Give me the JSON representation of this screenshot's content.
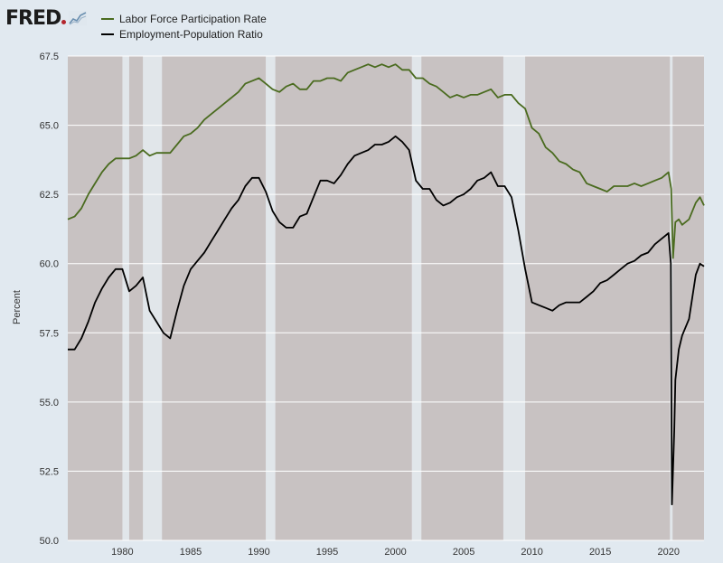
{
  "header": {
    "logo_text": "FRED"
  },
  "chart_data": {
    "type": "line",
    "ylabel": "Percent",
    "xlabel": "",
    "ylim": [
      50.0,
      67.5
    ],
    "xlim": [
      1976.0,
      2022.6
    ],
    "y_ticks": [
      "50.0",
      "52.5",
      "55.0",
      "57.5",
      "60.0",
      "62.5",
      "65.0",
      "67.5"
    ],
    "y_tick_values": [
      50.0,
      52.5,
      55.0,
      57.5,
      60.0,
      62.5,
      65.0,
      67.5
    ],
    "x_ticks": [
      "1980",
      "1985",
      "1990",
      "1995",
      "2000",
      "2005",
      "2010",
      "2015",
      "2020"
    ],
    "x_tick_values": [
      1980,
      1985,
      1990,
      1995,
      2000,
      2005,
      2010,
      2015,
      2020
    ],
    "legend_position": "top-left",
    "grid": true,
    "colors": {
      "plot_background": "#c8c2c2",
      "recession_shade": "#e1e6ea",
      "grid": "#ffffff",
      "axis_text": "#333333"
    },
    "recessions": [
      {
        "start": 1980.0,
        "end": 1980.5
      },
      {
        "start": 1981.5,
        "end": 1982.9
      },
      {
        "start": 1990.5,
        "end": 1991.2
      },
      {
        "start": 2001.2,
        "end": 2001.9
      },
      {
        "start": 2007.9,
        "end": 2009.5
      },
      {
        "start": 2020.1,
        "end": 2020.3
      }
    ],
    "series": [
      {
        "name": "Labor Force Participation Rate",
        "color": "#4a6b1f",
        "points": [
          [
            1976.0,
            61.6
          ],
          [
            1976.5,
            61.7
          ],
          [
            1977.0,
            62.0
          ],
          [
            1977.5,
            62.5
          ],
          [
            1978.0,
            62.9
          ],
          [
            1978.5,
            63.3
          ],
          [
            1979.0,
            63.6
          ],
          [
            1979.5,
            63.8
          ],
          [
            1980.0,
            63.8
          ],
          [
            1980.5,
            63.8
          ],
          [
            1981.0,
            63.9
          ],
          [
            1981.5,
            64.1
          ],
          [
            1982.0,
            63.9
          ],
          [
            1982.5,
            64.0
          ],
          [
            1983.0,
            64.0
          ],
          [
            1983.5,
            64.0
          ],
          [
            1984.0,
            64.3
          ],
          [
            1984.5,
            64.6
          ],
          [
            1985.0,
            64.7
          ],
          [
            1985.5,
            64.9
          ],
          [
            1986.0,
            65.2
          ],
          [
            1986.5,
            65.4
          ],
          [
            1987.0,
            65.6
          ],
          [
            1987.5,
            65.8
          ],
          [
            1988.0,
            66.0
          ],
          [
            1988.5,
            66.2
          ],
          [
            1989.0,
            66.5
          ],
          [
            1989.5,
            66.6
          ],
          [
            1990.0,
            66.7
          ],
          [
            1990.5,
            66.5
          ],
          [
            1991.0,
            66.3
          ],
          [
            1991.5,
            66.2
          ],
          [
            1992.0,
            66.4
          ],
          [
            1992.5,
            66.5
          ],
          [
            1993.0,
            66.3
          ],
          [
            1993.5,
            66.3
          ],
          [
            1994.0,
            66.6
          ],
          [
            1994.5,
            66.6
          ],
          [
            1995.0,
            66.7
          ],
          [
            1995.5,
            66.7
          ],
          [
            1996.0,
            66.6
          ],
          [
            1996.5,
            66.9
          ],
          [
            1997.0,
            67.0
          ],
          [
            1997.5,
            67.1
          ],
          [
            1998.0,
            67.2
          ],
          [
            1998.5,
            67.1
          ],
          [
            1999.0,
            67.2
          ],
          [
            1999.5,
            67.1
          ],
          [
            2000.0,
            67.2
          ],
          [
            2000.5,
            67.0
          ],
          [
            2001.0,
            67.0
          ],
          [
            2001.5,
            66.7
          ],
          [
            2002.0,
            66.7
          ],
          [
            2002.5,
            66.5
          ],
          [
            2003.0,
            66.4
          ],
          [
            2003.5,
            66.2
          ],
          [
            2004.0,
            66.0
          ],
          [
            2004.5,
            66.1
          ],
          [
            2005.0,
            66.0
          ],
          [
            2005.5,
            66.1
          ],
          [
            2006.0,
            66.1
          ],
          [
            2006.5,
            66.2
          ],
          [
            2007.0,
            66.3
          ],
          [
            2007.5,
            66.0
          ],
          [
            2008.0,
            66.1
          ],
          [
            2008.5,
            66.1
          ],
          [
            2009.0,
            65.8
          ],
          [
            2009.5,
            65.6
          ],
          [
            2010.0,
            64.9
          ],
          [
            2010.5,
            64.7
          ],
          [
            2011.0,
            64.2
          ],
          [
            2011.5,
            64.0
          ],
          [
            2012.0,
            63.7
          ],
          [
            2012.5,
            63.6
          ],
          [
            2013.0,
            63.4
          ],
          [
            2013.5,
            63.3
          ],
          [
            2014.0,
            62.9
          ],
          [
            2014.5,
            62.8
          ],
          [
            2015.0,
            62.7
          ],
          [
            2015.5,
            62.6
          ],
          [
            2016.0,
            62.8
          ],
          [
            2016.5,
            62.8
          ],
          [
            2017.0,
            62.8
          ],
          [
            2017.5,
            62.9
          ],
          [
            2018.0,
            62.8
          ],
          [
            2018.5,
            62.9
          ],
          [
            2019.0,
            63.0
          ],
          [
            2019.5,
            63.1
          ],
          [
            2020.0,
            63.3
          ],
          [
            2020.2,
            62.7
          ],
          [
            2020.33,
            60.2
          ],
          [
            2020.5,
            61.5
          ],
          [
            2020.75,
            61.6
          ],
          [
            2021.0,
            61.4
          ],
          [
            2021.5,
            61.6
          ],
          [
            2022.0,
            62.2
          ],
          [
            2022.3,
            62.4
          ],
          [
            2022.6,
            62.1
          ]
        ]
      },
      {
        "name": "Employment-Population Ratio",
        "color": "#000000",
        "points": [
          [
            1976.0,
            56.9
          ],
          [
            1976.5,
            56.9
          ],
          [
            1977.0,
            57.3
          ],
          [
            1977.5,
            57.9
          ],
          [
            1978.0,
            58.6
          ],
          [
            1978.5,
            59.1
          ],
          [
            1979.0,
            59.5
          ],
          [
            1979.5,
            59.8
          ],
          [
            1980.0,
            59.8
          ],
          [
            1980.5,
            59.0
          ],
          [
            1981.0,
            59.2
          ],
          [
            1981.5,
            59.5
          ],
          [
            1982.0,
            58.3
          ],
          [
            1982.5,
            57.9
          ],
          [
            1983.0,
            57.5
          ],
          [
            1983.5,
            57.3
          ],
          [
            1984.0,
            58.3
          ],
          [
            1984.5,
            59.2
          ],
          [
            1985.0,
            59.8
          ],
          [
            1985.5,
            60.1
          ],
          [
            1986.0,
            60.4
          ],
          [
            1986.5,
            60.8
          ],
          [
            1987.0,
            61.2
          ],
          [
            1987.5,
            61.6
          ],
          [
            1988.0,
            62.0
          ],
          [
            1988.5,
            62.3
          ],
          [
            1989.0,
            62.8
          ],
          [
            1989.5,
            63.1
          ],
          [
            1990.0,
            63.1
          ],
          [
            1990.5,
            62.6
          ],
          [
            1991.0,
            61.9
          ],
          [
            1991.5,
            61.5
          ],
          [
            1992.0,
            61.3
          ],
          [
            1992.5,
            61.3
          ],
          [
            1993.0,
            61.7
          ],
          [
            1993.5,
            61.8
          ],
          [
            1994.0,
            62.4
          ],
          [
            1994.5,
            63.0
          ],
          [
            1995.0,
            63.0
          ],
          [
            1995.5,
            62.9
          ],
          [
            1996.0,
            63.2
          ],
          [
            1996.5,
            63.6
          ],
          [
            1997.0,
            63.9
          ],
          [
            1997.5,
            64.0
          ],
          [
            1998.0,
            64.1
          ],
          [
            1998.5,
            64.3
          ],
          [
            1999.0,
            64.3
          ],
          [
            1999.5,
            64.4
          ],
          [
            2000.0,
            64.6
          ],
          [
            2000.5,
            64.4
          ],
          [
            2001.0,
            64.1
          ],
          [
            2001.5,
            63.0
          ],
          [
            2002.0,
            62.7
          ],
          [
            2002.5,
            62.7
          ],
          [
            2003.0,
            62.3
          ],
          [
            2003.5,
            62.1
          ],
          [
            2004.0,
            62.2
          ],
          [
            2004.5,
            62.4
          ],
          [
            2005.0,
            62.5
          ],
          [
            2005.5,
            62.7
          ],
          [
            2006.0,
            63.0
          ],
          [
            2006.5,
            63.1
          ],
          [
            2007.0,
            63.3
          ],
          [
            2007.5,
            62.8
          ],
          [
            2008.0,
            62.8
          ],
          [
            2008.5,
            62.4
          ],
          [
            2009.0,
            61.2
          ],
          [
            2009.5,
            59.8
          ],
          [
            2010.0,
            58.6
          ],
          [
            2010.5,
            58.5
          ],
          [
            2011.0,
            58.4
          ],
          [
            2011.5,
            58.3
          ],
          [
            2012.0,
            58.5
          ],
          [
            2012.5,
            58.6
          ],
          [
            2013.0,
            58.6
          ],
          [
            2013.5,
            58.6
          ],
          [
            2014.0,
            58.8
          ],
          [
            2014.5,
            59.0
          ],
          [
            2015.0,
            59.3
          ],
          [
            2015.5,
            59.4
          ],
          [
            2016.0,
            59.6
          ],
          [
            2016.5,
            59.8
          ],
          [
            2017.0,
            60.0
          ],
          [
            2017.5,
            60.1
          ],
          [
            2018.0,
            60.3
          ],
          [
            2018.5,
            60.4
          ],
          [
            2019.0,
            60.7
          ],
          [
            2019.5,
            60.9
          ],
          [
            2020.0,
            61.1
          ],
          [
            2020.17,
            60.0
          ],
          [
            2020.25,
            51.3
          ],
          [
            2020.42,
            54.0
          ],
          [
            2020.5,
            55.8
          ],
          [
            2020.75,
            56.9
          ],
          [
            2021.0,
            57.4
          ],
          [
            2021.5,
            58.0
          ],
          [
            2022.0,
            59.6
          ],
          [
            2022.3,
            60.0
          ],
          [
            2022.6,
            59.9
          ]
        ]
      }
    ]
  }
}
